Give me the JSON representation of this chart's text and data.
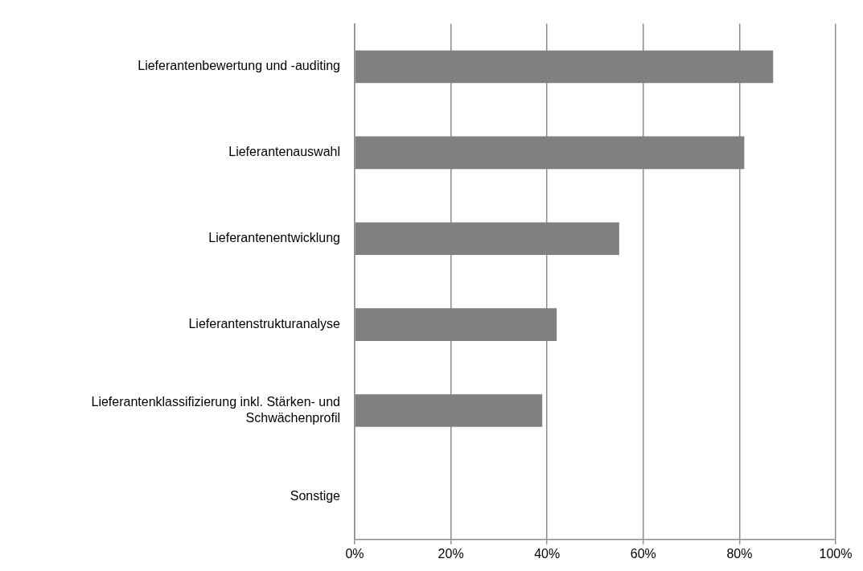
{
  "chart_data": {
    "type": "bar",
    "orientation": "horizontal",
    "categories": [
      "Lieferantenbewertung und -auditing",
      "Lieferantenauswahl",
      "Lieferantenentwicklung",
      "Lieferantenstrukturanalyse",
      "Lieferantenklassifizierung inkl. Stärken- und Schwächenprofil",
      "Sonstige"
    ],
    "values": [
      87,
      81,
      55,
      42,
      39,
      0
    ],
    "color": "#808080",
    "xlim": [
      0,
      100
    ],
    "xticks": [
      {
        "value": 0,
        "label": "0%"
      },
      {
        "value": 20,
        "label": "20%"
      },
      {
        "value": 40,
        "label": "40%"
      },
      {
        "value": 60,
        "label": "60%"
      },
      {
        "value": 80,
        "label": "80%"
      },
      {
        "value": 100,
        "label": "100%"
      }
    ],
    "grid": "x",
    "legend": false
  }
}
